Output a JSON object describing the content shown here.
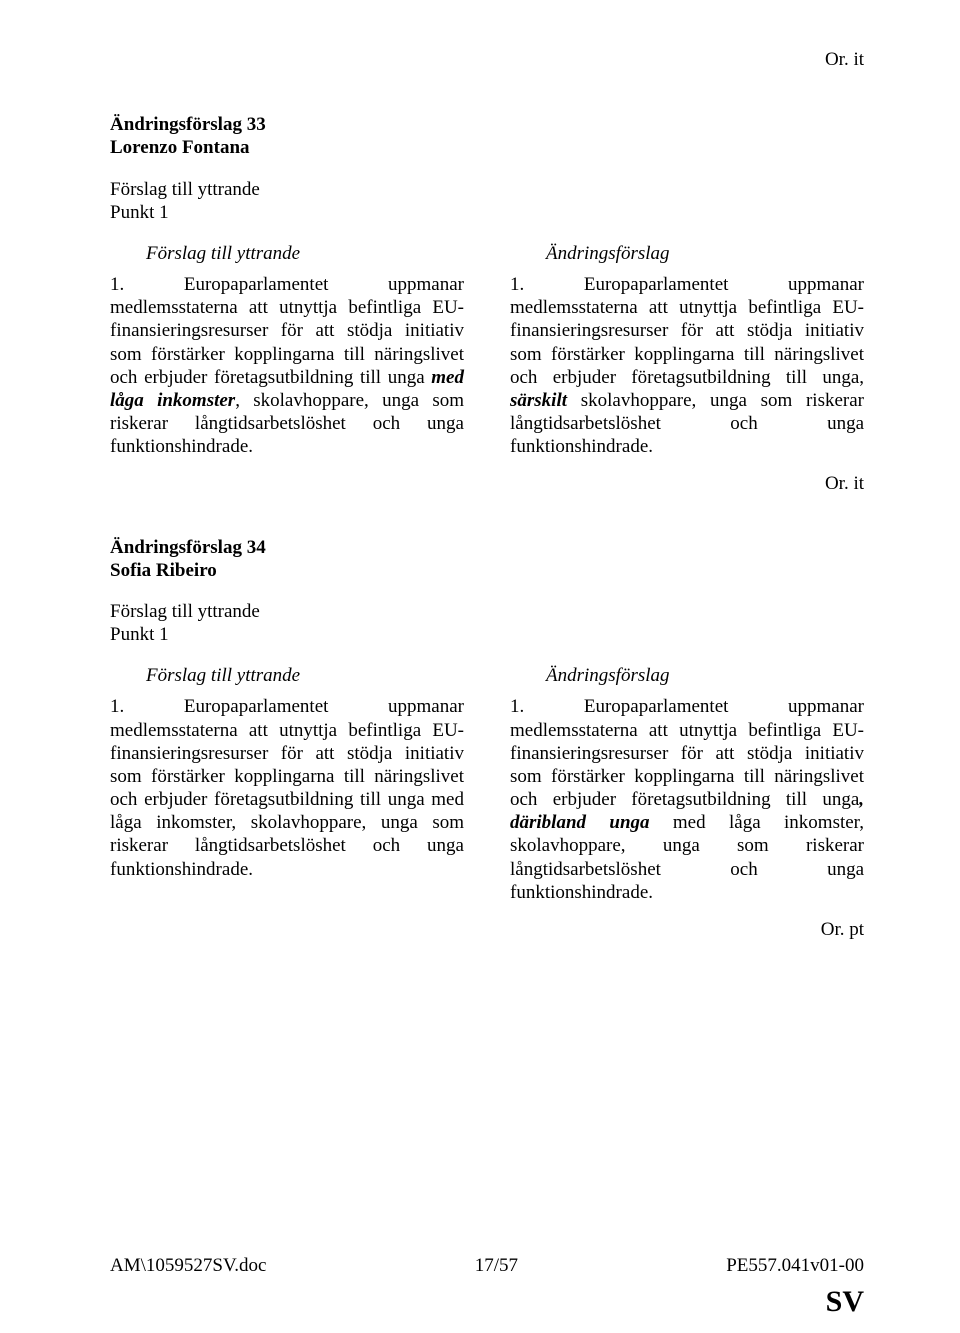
{
  "topRight": "Or. it",
  "amendments": [
    {
      "number_line": "Ändringsförslag 33",
      "author": "Lorenzo Fontana",
      "subject_line1": "Förslag till yttrande",
      "subject_line2": "Punkt 1",
      "left_heading": "Förslag till yttrande",
      "right_heading": "Ändringsförslag",
      "left_html": "1. Europaparlamentet uppmanar medlemsstaterna att utnyttja befintliga EU-finansieringsresurser för att stödja initiativ som förstärker kopplingarna till näringslivet och erbjuder företagsutbildning till unga <span class=\"strongem\">med låga inkomster</span>, skolavhoppare, unga som riskerar långtidsarbetslöshet och unga funktionshindrade.",
      "right_html": "1. Europaparlamentet uppmanar medlemsstaterna att utnyttja befintliga EU-finansieringsresurser för att stödja initiativ som förstärker kopplingarna till näringslivet och erbjuder företagsutbildning till unga, <span class=\"strongem\">särskilt</span> skolavhoppare, unga som riskerar långtidsarbetslöshet och unga funktionshindrade.",
      "after_right": "Or. it"
    },
    {
      "number_line": "Ändringsförslag 34",
      "author": "Sofia Ribeiro",
      "subject_line1": "Förslag till yttrande",
      "subject_line2": "Punkt 1",
      "left_heading": "Förslag till yttrande",
      "right_heading": "Ändringsförslag",
      "left_html": "1. Europaparlamentet uppmanar medlemsstaterna att utnyttja befintliga EU-finansieringsresurser för att stödja initiativ som förstärker kopplingarna till näringslivet och erbjuder företagsutbildning till unga med låga inkomster, skolavhoppare, unga som riskerar långtidsarbetslöshet och unga funktionshindrade.",
      "right_html": "1. Europaparlamentet uppmanar medlemsstaterna att utnyttja befintliga EU-finansieringsresurser för att stödja initiativ som förstärker kopplingarna till näringslivet och erbjuder företagsutbildning till unga<span class=\"strongem\">, däribland unga</span> med låga inkomster, skolavhoppare, unga som riskerar långtidsarbetslöshet och unga funktionshindrade.",
      "after_right": "Or. pt"
    }
  ],
  "footer": {
    "left": "AM\\1059527SV.doc",
    "center": "17/57",
    "right": "PE557.041v01-00"
  },
  "sv": "SV"
}
